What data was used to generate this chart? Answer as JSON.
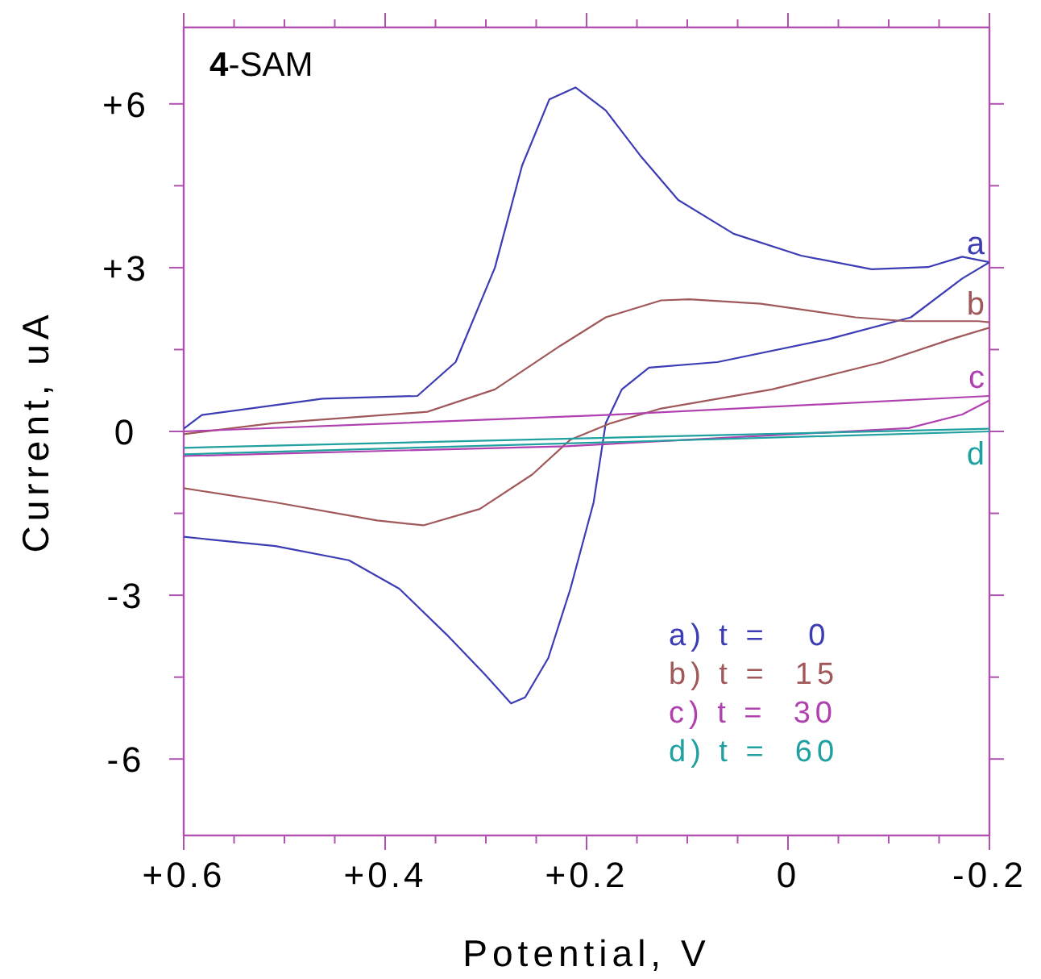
{
  "chart_data": {
    "type": "line",
    "title": "4-SAM",
    "xlabel": "Potential, V",
    "ylabel": "Current, uA",
    "xlim": [
      0.6,
      -0.2
    ],
    "ylim": [
      -7.4,
      7.4
    ],
    "xticks": [
      {
        "value": 0.6,
        "label": "+0.6"
      },
      {
        "value": 0.55,
        "label": null
      },
      {
        "value": 0.5,
        "label": null
      },
      {
        "value": 0.45,
        "label": null
      },
      {
        "value": 0.4,
        "label": "+0.4"
      },
      {
        "value": 0.35,
        "label": null
      },
      {
        "value": 0.3,
        "label": null
      },
      {
        "value": 0.25,
        "label": null
      },
      {
        "value": 0.2,
        "label": "+0.2"
      },
      {
        "value": 0.15,
        "label": null
      },
      {
        "value": 0.1,
        "label": null
      },
      {
        "value": 0.05,
        "label": null
      },
      0,
      {
        "value": -0.05,
        "label": null
      },
      {
        "value": -0.1,
        "label": null
      },
      {
        "value": -0.15,
        "label": null
      },
      -0.2
    ],
    "yticks": [
      {
        "value": 6,
        "label": "+6"
      },
      {
        "value": 4.5,
        "label": null
      },
      {
        "value": 3,
        "label": "+3"
      },
      {
        "value": 1.5,
        "label": null
      },
      0,
      {
        "value": -1.5,
        "label": null
      },
      -3,
      {
        "value": -4.5,
        "label": null
      },
      -6
    ],
    "grid": false,
    "legend": "bottom right",
    "marker": "none",
    "line_style": "solid",
    "series": [
      {
        "name": "a) t =   0",
        "color": "#3c3cb4",
        "x": [
          0.6,
          0.582,
          0.462,
          0.368,
          0.33,
          0.291,
          0.264,
          0.237,
          0.211,
          0.181,
          0.147,
          0.109,
          0.054,
          -0.013,
          -0.083,
          -0.139,
          -0.173,
          -0.2
        ],
        "values": [
          0.05,
          0.3,
          0.6,
          0.65,
          1.27,
          3.0,
          4.87,
          6.08,
          6.3,
          5.88,
          5.06,
          4.24,
          3.62,
          3.22,
          2.97,
          3.01,
          3.2,
          3.1
        ]
      },
      {
        "color": "#3c3cb4",
        "x": [
          -0.2,
          -0.173,
          -0.122,
          -0.04,
          0.07,
          0.138,
          0.165,
          0.181,
          0.193,
          0.216,
          0.238,
          0.261,
          0.275,
          0.301,
          0.339,
          0.386,
          0.436,
          0.509,
          0.6
        ],
        "values": [
          3.1,
          2.8,
          2.09,
          1.69,
          1.27,
          1.17,
          0.77,
          0.15,
          -1.3,
          -2.88,
          -4.15,
          -4.87,
          -4.98,
          -4.45,
          -3.72,
          -2.88,
          -2.36,
          -2.1,
          -1.93
        ]
      },
      {
        "name": "b) t =  15",
        "color": "#a0585a",
        "x": [
          0.6,
          0.512,
          0.358,
          0.291,
          0.226,
          0.181,
          0.126,
          0.098,
          0.027,
          -0.067,
          -0.117,
          -0.189,
          -0.2
        ],
        "values": [
          -0.05,
          0.15,
          0.36,
          0.77,
          1.57,
          2.09,
          2.4,
          2.42,
          2.34,
          2.09,
          2.02,
          2.02,
          2.0
        ]
      },
      {
        "color": "#a0585a",
        "x": [
          -0.2,
          -0.162,
          -0.094,
          0.016,
          0.126,
          0.176,
          0.216,
          0.254,
          0.306,
          0.362,
          0.408,
          0.509,
          0.6
        ],
        "values": [
          1.9,
          1.69,
          1.27,
          0.77,
          0.42,
          0.15,
          -0.15,
          -0.79,
          -1.42,
          -1.72,
          -1.63,
          -1.3,
          -1.04
        ]
      },
      {
        "name": "c) t =  30",
        "color": "#b040b0",
        "x": [
          0.6,
          0.181,
          -0.2
        ],
        "values": [
          0.0,
          0.3,
          0.65
        ]
      },
      {
        "color": "#b040b0",
        "x": [
          -0.2,
          -0.173,
          -0.12,
          0.22,
          0.6
        ],
        "values": [
          0.57,
          0.31,
          0.06,
          -0.27,
          -0.45
        ]
      },
      {
        "name": "d) t =  60",
        "color": "#20a0a0",
        "x": [
          0.6,
          -0.2
        ],
        "values": [
          -0.3,
          0.05
        ]
      },
      {
        "color": "#20a0a0",
        "x": [
          -0.2,
          0.6
        ],
        "values": [
          0.0,
          -0.42
        ]
      }
    ],
    "annotations": [
      "a",
      "b",
      "c",
      "d"
    ]
  }
}
